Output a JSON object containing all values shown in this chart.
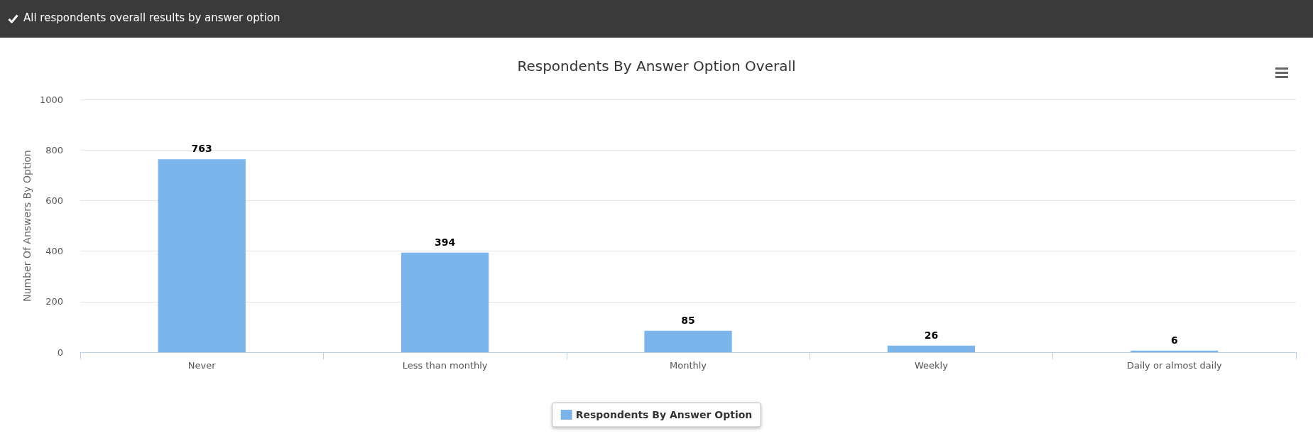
{
  "chart_data": {
    "type": "bar",
    "title": "Respondents By Answer Option Overall",
    "annotations": [
      "All respondents overall results by answer option"
    ],
    "ylabel": "Number Of Answers By Option",
    "categories": [
      "Never",
      "Less than monthly",
      "Monthly",
      "Weekly",
      "Daily or almost daily"
    ],
    "series": [
      {
        "name": "Respondents By Answer Option",
        "color": "#7cb5ec",
        "values": [
          763,
          394,
          85,
          26,
          6
        ]
      }
    ],
    "ylim": [
      0,
      1000
    ],
    "yticks": [
      0,
      200,
      400,
      600,
      800,
      1000
    ],
    "grid": "y",
    "legend": "bottom",
    "data_labels": true
  }
}
